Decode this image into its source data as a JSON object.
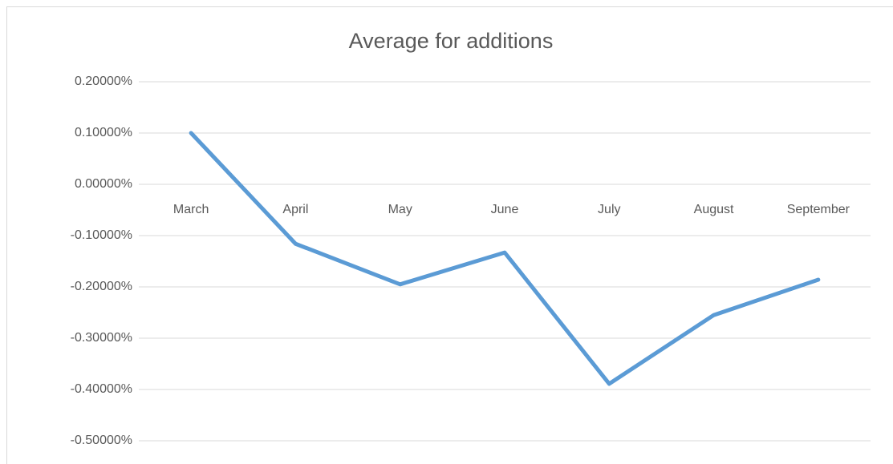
{
  "chart_data": {
    "type": "line",
    "title": "Average for additions",
    "categories": [
      "March",
      "April",
      "May",
      "June",
      "July",
      "August",
      "September"
    ],
    "series": [
      {
        "name": "Average for additions",
        "color": "#5b9bd5",
        "values": [
          0.1,
          -0.116,
          -0.195,
          -0.133,
          -0.389,
          -0.255,
          -0.186
        ]
      }
    ],
    "ylim": [
      -0.5,
      0.2
    ],
    "yticks": [
      {
        "value": 0.2,
        "label": "0.20000%"
      },
      {
        "value": 0.1,
        "label": "0.10000%"
      },
      {
        "value": 0,
        "label": "0.00000%"
      },
      {
        "value": -0.1,
        "label": "-0.10000%"
      },
      {
        "value": -0.2,
        "label": "-0.20000%"
      },
      {
        "value": -0.3,
        "label": "-0.30000%"
      },
      {
        "value": -0.4,
        "label": "-0.40000%"
      },
      {
        "value": -0.5,
        "label": "-0.50000%"
      }
    ],
    "grid": true
  }
}
